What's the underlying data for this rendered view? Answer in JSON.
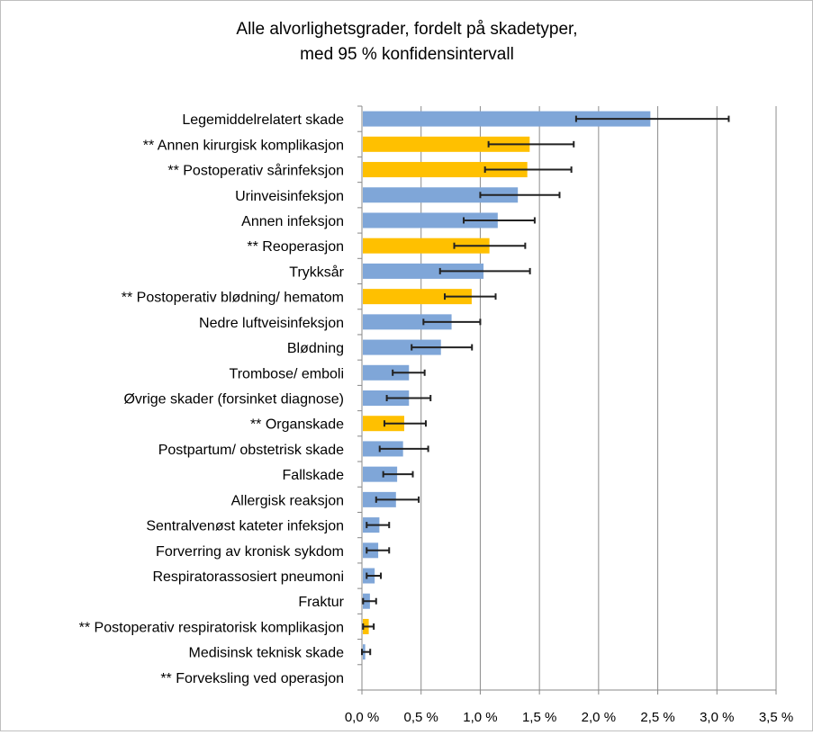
{
  "chart_data": {
    "type": "bar",
    "orientation": "horizontal",
    "title": [
      "Alle alvorlighetsgrader, fordelt på skadetyper,",
      "med 95 % konfidensintervall"
    ],
    "xlim": [
      0,
      3.5
    ],
    "x_ticks": [
      "0,0 %",
      "0,5 %",
      "1,0 %",
      "1,5 %",
      "2,0 %",
      "2,5 %",
      "3,0 %",
      "3,5 %"
    ],
    "x_tick_values": [
      0,
      0.5,
      1.0,
      1.5,
      2.0,
      2.5,
      3.0,
      3.5
    ],
    "unit": "%",
    "grid": "vertical",
    "colors": {
      "default": "#7FA6D8",
      "highlighted": "#FFC000",
      "error_bar": "#222222",
      "grid": "#8c8c8c"
    },
    "categories": [
      "Legemiddelrelatert skade",
      "** Annen kirurgisk komplikasjon",
      "** Postoperativ sårinfeksjon",
      "Urinveisinfeksjon",
      "Annen infeksjon",
      "** Reoperasjon",
      "Trykksår",
      "** Postoperativ blødning/ hematom",
      "Nedre luftveisinfeksjon",
      "Blødning",
      "Trombose/ emboli",
      "Øvrige skader (forsinket diagnose)",
      "** Organskade",
      "Postpartum/ obstetrisk skade",
      "Fallskade",
      "Allergisk reaksjon",
      "Sentralvenøst kateter infeksjon",
      "Forverring av kronisk sykdom",
      "Respiratorassosiert pneumoni",
      "Fraktur",
      "** Postoperativ respiratorisk komplikasjon",
      "Medisinsk teknisk skade",
      "** Forveksling ved operasjon"
    ],
    "values": [
      2.43,
      1.41,
      1.39,
      1.31,
      1.14,
      1.07,
      1.02,
      0.92,
      0.75,
      0.66,
      0.39,
      0.39,
      0.35,
      0.34,
      0.29,
      0.28,
      0.14,
      0.13,
      0.1,
      0.06,
      0.05,
      0.02,
      0.0
    ],
    "ci_low": [
      1.81,
      1.07,
      1.04,
      1.0,
      0.86,
      0.78,
      0.66,
      0.7,
      0.52,
      0.42,
      0.26,
      0.21,
      0.19,
      0.15,
      0.18,
      0.12,
      0.04,
      0.04,
      0.04,
      0.01,
      0.01,
      0.0,
      0.0
    ],
    "ci_high": [
      3.1,
      1.79,
      1.77,
      1.67,
      1.46,
      1.38,
      1.42,
      1.13,
      1.0,
      0.93,
      0.53,
      0.58,
      0.54,
      0.56,
      0.43,
      0.48,
      0.23,
      0.23,
      0.16,
      0.12,
      0.1,
      0.07,
      0.0
    ],
    "highlighted": [
      false,
      true,
      true,
      false,
      false,
      true,
      false,
      true,
      false,
      false,
      false,
      false,
      true,
      false,
      false,
      false,
      false,
      false,
      false,
      false,
      true,
      false,
      true
    ]
  }
}
